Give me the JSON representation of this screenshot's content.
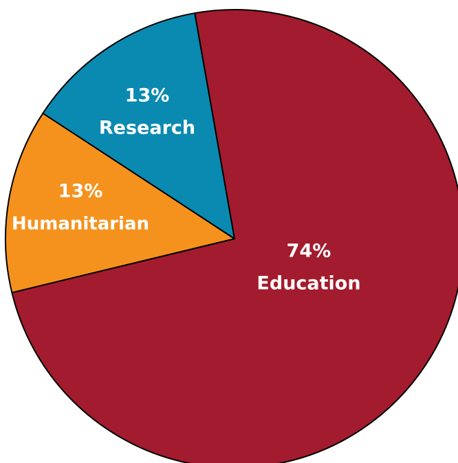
{
  "chart_data": {
    "type": "pie",
    "slices": [
      {
        "name": "Education",
        "value": 74,
        "percent_label": "74%",
        "label": "Education",
        "color": "#A31B2E"
      },
      {
        "name": "Humanitarian",
        "value": 13,
        "percent_label": "13%",
        "label": "Humanitarian",
        "color": "#F5921E"
      },
      {
        "name": "Research",
        "value": 13,
        "percent_label": "13%",
        "label": "Research",
        "color": "#0A8AB0"
      }
    ],
    "stroke_color": "#000000",
    "start_angle_deg": -100
  }
}
